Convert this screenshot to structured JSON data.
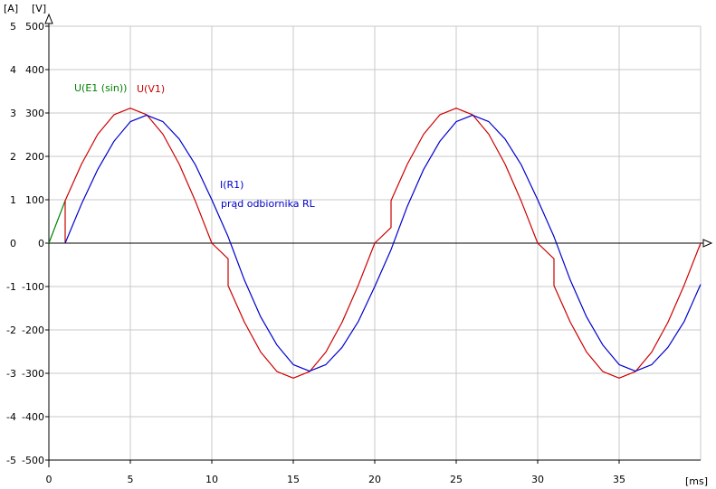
{
  "chart_data": {
    "type": "line",
    "axes": {
      "x_unit_label": "[ms]",
      "left_unit_label": "[A]",
      "right_unit_label": "[V]",
      "xlim": [
        0,
        40
      ],
      "ylim_current": [
        -5,
        5
      ],
      "ylim_voltage": [
        -500,
        500
      ],
      "x_ticks": [
        "0",
        "5",
        "10",
        "15",
        "20",
        "25",
        "30",
        "35"
      ],
      "current_ticks": [
        "5",
        "4",
        "3",
        "2",
        "1",
        "0",
        "-1",
        "-2",
        "-3",
        "-4",
        "-5"
      ],
      "voltage_ticks": [
        "500",
        "400",
        "300",
        "200",
        "100",
        "0",
        "-100",
        "-200",
        "-300",
        "-400",
        "-500"
      ],
      "grid": true
    },
    "series": [
      {
        "name": "U(E1 (sin))",
        "color": "#008000",
        "axis": "voltage",
        "x": [
          0,
          1
        ],
        "y": [
          0,
          98
        ]
      },
      {
        "name": "U(V1)",
        "color": "#cc0000",
        "axis": "voltage",
        "x": [
          1,
          1,
          2,
          3,
          4,
          5,
          6,
          7,
          8,
          9,
          10,
          11,
          11,
          11,
          12,
          13,
          14,
          15,
          16,
          17,
          18,
          19,
          20,
          21,
          21,
          21,
          22,
          23,
          24,
          25,
          26,
          27,
          28,
          29,
          30,
          31,
          31,
          31,
          32,
          33,
          34,
          35,
          36,
          37,
          37,
          38,
          39,
          40
        ],
        "y": [
          0,
          98,
          182,
          251,
          296,
          311,
          296,
          251,
          182,
          96,
          0,
          -36,
          -98,
          -98,
          -182,
          -251,
          -296,
          -311,
          -296,
          -251,
          -182,
          -96,
          0,
          36,
          98,
          98,
          182,
          251,
          296,
          311,
          296,
          251,
          182,
          96,
          0,
          -36,
          -98,
          -98,
          -182,
          -251,
          -296,
          -311,
          -296,
          -251,
          -251,
          -182,
          -96,
          0
        ]
      },
      {
        "name": "I(R1)",
        "sublabel": "prąd odbiornika RL",
        "color": "#0000cc",
        "axis": "current",
        "x": [
          1,
          2,
          3,
          4,
          5,
          6,
          7,
          8,
          9,
          10,
          11,
          12,
          13,
          14,
          15,
          16,
          17,
          18,
          19,
          20,
          21,
          22,
          23,
          24,
          25,
          26,
          27,
          28,
          29,
          30,
          31,
          32,
          33,
          34,
          35,
          36,
          37,
          38,
          39,
          40
        ],
        "y": [
          0,
          0.9,
          1.7,
          2.35,
          2.8,
          2.95,
          2.8,
          2.4,
          1.8,
          1.0,
          0.15,
          -0.85,
          -1.7,
          -2.35,
          -2.8,
          -2.95,
          -2.8,
          -2.4,
          -1.8,
          -1.0,
          -0.15,
          0.85,
          1.7,
          2.35,
          2.8,
          2.95,
          2.8,
          2.4,
          1.8,
          1.0,
          0.15,
          -0.85,
          -1.7,
          -2.35,
          -2.8,
          -2.95,
          -2.8,
          -2.4,
          -1.8,
          -0.95
        ]
      }
    ]
  }
}
